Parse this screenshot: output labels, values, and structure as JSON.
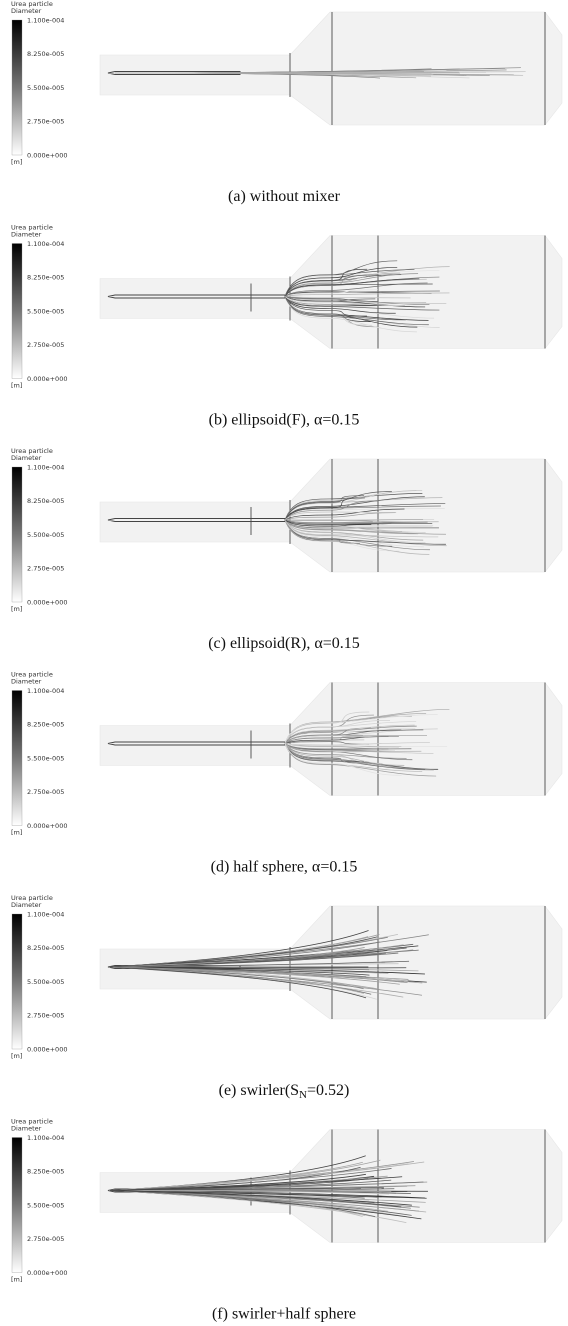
{
  "panels": [
    {
      "legend": {
        "title": [
          "Urea particle",
          "Diameter"
        ],
        "ticks": [
          "1.100e-004",
          "8.250e-005",
          "5.500e-005",
          "2.750e-005",
          "0.000e+000"
        ],
        "unit": "[m]"
      },
      "caption": [
        "(a)  without  mixer"
      ]
    },
    {
      "legend": {
        "title": [
          "Urea particle",
          "Diameter"
        ],
        "ticks": [
          "1.100e-004",
          "8.250e-005",
          "5.500e-005",
          "2.750e-005",
          "0.000e+000"
        ],
        "unit": "[m]"
      },
      "caption": [
        "(b)  ellipsoid(F),  α=0.15"
      ]
    },
    {
      "legend": {
        "title": [
          "Urea particle",
          "Diameter"
        ],
        "ticks": [
          "1.100e-004",
          "8.250e-005",
          "5.500e-005",
          "2.750e-005",
          "0.000e+000"
        ],
        "unit": "[m]"
      },
      "caption": [
        "(c)  ellipsoid(R),  α=0.15"
      ]
    },
    {
      "legend": {
        "title": [
          "Urea particle",
          "Diameter"
        ],
        "ticks": [
          "1.100e-004",
          "8.250e-005",
          "5.500e-005",
          "2.750e-005",
          "0.000e+000"
        ],
        "unit": "[m]"
      },
      "caption": [
        "(d)  half  sphere,  α=0.15"
      ]
    },
    {
      "legend": {
        "title": [
          "Urea particle",
          "Diameter"
        ],
        "ticks": [
          "1.100e-004",
          "8.250e-005",
          "5.500e-005",
          "2.750e-005",
          "0.000e+000"
        ],
        "unit": "[m]"
      },
      "caption": [
        "(e)  swirler(S",
        "N",
        "=0.52)"
      ]
    },
    {
      "legend": {
        "title": [
          "Urea particle",
          "Diameter"
        ],
        "ticks": [
          "1.100e-004",
          "8.250e-005",
          "5.500e-005",
          "2.750e-005",
          "0.000e+000"
        ],
        "unit": "[m]"
      },
      "caption": [
        "(f)  swirler+half  sphere"
      ]
    }
  ]
}
